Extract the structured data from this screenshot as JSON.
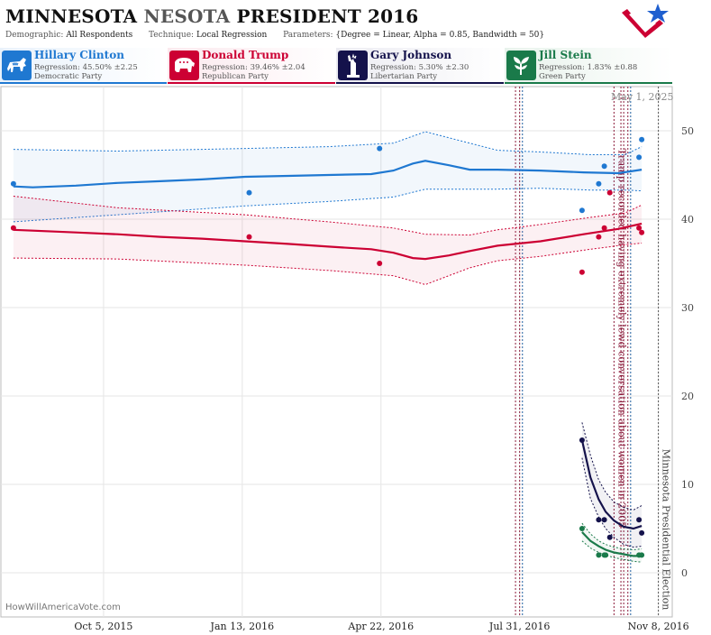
{
  "header": {
    "title_part1": "MINNESOTA",
    "title_part2": "NESOTA",
    "title_part3": "PRESIDENT 2016",
    "demographic_label": "Demographic:",
    "demographic_value": "All Respondents",
    "technique_label": "Technique:",
    "technique_value": "Local Regression",
    "parameters_label": "Parameters:",
    "parameters_value": "{Degree = Linear, Alpha = 0.85, Bandwidth = 50}"
  },
  "logo_icon": "star-checkmark-logo-icon",
  "candidates": [
    {
      "name": "Hillary Clinton",
      "regression": "Regression: 45.50% ±2.25",
      "party": "Democratic Party",
      "color": "#1f78d1",
      "bg": "#e9f2fb",
      "icon": "donkey-icon"
    },
    {
      "name": "Donald Trump",
      "regression": "Regression: 39.46% ±2.04",
      "party": "Republican Party",
      "color": "#cc0033",
      "bg": "#fbe9ee",
      "icon": "elephant-icon"
    },
    {
      "name": "Gary Johnson",
      "regression": "Regression: 5.30% ±2.30",
      "party": "Libertarian Party",
      "color": "#14124b",
      "bg": "#ececf2",
      "icon": "statue-of-liberty-icon"
    },
    {
      "name": "Jill Stein",
      "regression": "Regression: 1.83% ±0.88",
      "party": "Green Party",
      "color": "#1a7a4a",
      "bg": "#e8f3ec",
      "icon": "green-leaf-icon"
    }
  ],
  "date_stamp": "May 1, 2025",
  "watermark": "HowWillAmericaVote.com",
  "chart_data": {
    "type": "scatter",
    "x_axis": {
      "min": "2015-07-23",
      "max": "2016-11-18"
    },
    "x_ticks": [
      {
        "date": "2015-10-05",
        "label": "Oct 5, 2015"
      },
      {
        "date": "2016-01-13",
        "label": "Jan 13, 2016"
      },
      {
        "date": "2016-04-22",
        "label": "Apr 22, 2016"
      },
      {
        "date": "2016-07-31",
        "label": "Jul 31, 2016"
      },
      {
        "date": "2016-11-08",
        "label": "Nov 8, 2016"
      }
    ],
    "y_axis": {
      "min": -5,
      "max": 55,
      "ticks": [
        0,
        10,
        20,
        30,
        40,
        50
      ],
      "side": "right"
    },
    "grid": true,
    "event_lines": [
      {
        "date": "2016-07-28",
        "color": "#8b1a3a",
        "style": "dotted"
      },
      {
        "date": "2016-07-31",
        "color": "#8b1a3a",
        "style": "dotted"
      },
      {
        "date": "2016-08-02",
        "color": "#1f5fa0",
        "style": "dotted"
      },
      {
        "date": "2016-10-07",
        "color": "#8b1a3a",
        "style": "dotted"
      },
      {
        "date": "2016-10-12",
        "color": "#8b1a3a",
        "style": "dotted"
      },
      {
        "date": "2016-10-14",
        "color": "#8b1a3a",
        "style": "dotted"
      },
      {
        "date": "2016-10-17",
        "color": "#8b1a3a",
        "style": "dotted"
      },
      {
        "date": "2016-10-19",
        "color": "#1f5fa0",
        "style": "dotted"
      },
      {
        "date": "2016-11-08",
        "color": "#555555",
        "style": "dotted"
      }
    ],
    "annotations": [
      {
        "text": "Trump recorded having extremely lewd conversation about women in 2005",
        "date": "2016-10-07",
        "y": 48,
        "color": "#8b1a3a"
      },
      {
        "text": "Minnesota Presidential Election",
        "date": "2016-11-08",
        "y": 14,
        "color": "#444444"
      }
    ],
    "series": [
      {
        "name": "Hillary Clinton",
        "color": "#1f78d1",
        "points": [
          [
            "2015-08-01",
            44
          ],
          [
            "2016-01-18",
            43
          ],
          [
            "2016-04-21",
            48
          ],
          [
            "2016-09-14",
            41
          ],
          [
            "2016-09-26",
            44
          ],
          [
            "2016-09-30",
            46
          ],
          [
            "2016-10-25",
            47
          ],
          [
            "2016-10-27",
            49
          ]
        ],
        "trend": [
          [
            "2015-08-01",
            43.7
          ],
          [
            "2015-08-15",
            43.6
          ],
          [
            "2015-09-15",
            43.8
          ],
          [
            "2015-10-15",
            44.1
          ],
          [
            "2015-11-15",
            44.3
          ],
          [
            "2015-12-15",
            44.5
          ],
          [
            "2016-01-15",
            44.8
          ],
          [
            "2016-02-15",
            44.9
          ],
          [
            "2016-03-15",
            45.0
          ],
          [
            "2016-04-15",
            45.1
          ],
          [
            "2016-05-01",
            45.5
          ],
          [
            "2016-05-15",
            46.3
          ],
          [
            "2016-05-24",
            46.6
          ],
          [
            "2016-06-10",
            46.1
          ],
          [
            "2016-06-25",
            45.6
          ],
          [
            "2016-07-15",
            45.6
          ],
          [
            "2016-08-15",
            45.5
          ],
          [
            "2016-09-15",
            45.3
          ],
          [
            "2016-10-10",
            45.2
          ],
          [
            "2016-10-27",
            45.6
          ]
        ],
        "upper": [
          [
            "2015-08-01",
            47.9
          ],
          [
            "2015-10-15",
            47.7
          ],
          [
            "2016-01-15",
            48.0
          ],
          [
            "2016-03-15",
            48.2
          ],
          [
            "2016-05-01",
            48.6
          ],
          [
            "2016-05-24",
            49.9
          ],
          [
            "2016-06-15",
            49.0
          ],
          [
            "2016-07-15",
            47.8
          ],
          [
            "2016-08-15",
            47.6
          ],
          [
            "2016-09-20",
            47.3
          ],
          [
            "2016-10-15",
            47.3
          ],
          [
            "2016-10-27",
            48.2
          ]
        ],
        "lower": [
          [
            "2015-08-01",
            39.7
          ],
          [
            "2015-10-15",
            40.5
          ],
          [
            "2016-01-15",
            41.5
          ],
          [
            "2016-03-15",
            42.0
          ],
          [
            "2016-05-01",
            42.5
          ],
          [
            "2016-05-24",
            43.4
          ],
          [
            "2016-06-15",
            43.4
          ],
          [
            "2016-07-15",
            43.4
          ],
          [
            "2016-08-15",
            43.5
          ],
          [
            "2016-09-20",
            43.3
          ],
          [
            "2016-10-15",
            43.3
          ],
          [
            "2016-10-27",
            43.2
          ]
        ]
      },
      {
        "name": "Donald Trump",
        "color": "#cc0033",
        "points": [
          [
            "2015-08-01",
            39
          ],
          [
            "2016-01-18",
            38
          ],
          [
            "2016-04-21",
            35
          ],
          [
            "2016-09-14",
            34
          ],
          [
            "2016-09-26",
            38
          ],
          [
            "2016-09-30",
            39
          ],
          [
            "2016-10-04",
            43
          ],
          [
            "2016-10-25",
            39
          ],
          [
            "2016-10-27",
            38.5
          ]
        ],
        "trend": [
          [
            "2015-08-01",
            38.8
          ],
          [
            "2015-09-15",
            38.5
          ],
          [
            "2015-10-15",
            38.3
          ],
          [
            "2015-11-15",
            38.0
          ],
          [
            "2015-12-15",
            37.8
          ],
          [
            "2016-01-15",
            37.5
          ],
          [
            "2016-02-15",
            37.2
          ],
          [
            "2016-03-15",
            36.9
          ],
          [
            "2016-04-15",
            36.6
          ],
          [
            "2016-05-01",
            36.2
          ],
          [
            "2016-05-15",
            35.6
          ],
          [
            "2016-05-24",
            35.5
          ],
          [
            "2016-06-10",
            35.9
          ],
          [
            "2016-06-25",
            36.4
          ],
          [
            "2016-07-15",
            37.0
          ],
          [
            "2016-08-15",
            37.5
          ],
          [
            "2016-09-15",
            38.3
          ],
          [
            "2016-10-10",
            38.9
          ],
          [
            "2016-10-27",
            39.5
          ]
        ],
        "upper": [
          [
            "2015-08-01",
            42.6
          ],
          [
            "2015-10-15",
            41.3
          ],
          [
            "2016-01-15",
            40.5
          ],
          [
            "2016-03-15",
            39.7
          ],
          [
            "2016-05-01",
            39.0
          ],
          [
            "2016-05-24",
            38.3
          ],
          [
            "2016-06-25",
            38.2
          ],
          [
            "2016-07-15",
            38.8
          ],
          [
            "2016-08-15",
            39.4
          ],
          [
            "2016-09-20",
            40.2
          ],
          [
            "2016-10-15",
            40.7
          ],
          [
            "2016-10-27",
            41.6
          ]
        ],
        "lower": [
          [
            "2015-08-01",
            35.6
          ],
          [
            "2015-10-15",
            35.5
          ],
          [
            "2016-01-15",
            34.8
          ],
          [
            "2016-03-15",
            34.2
          ],
          [
            "2016-05-01",
            33.6
          ],
          [
            "2016-05-24",
            32.6
          ],
          [
            "2016-06-25",
            34.5
          ],
          [
            "2016-07-15",
            35.3
          ],
          [
            "2016-08-15",
            35.8
          ],
          [
            "2016-09-20",
            36.6
          ],
          [
            "2016-10-15",
            37.1
          ],
          [
            "2016-10-27",
            37.3
          ]
        ]
      },
      {
        "name": "Gary Johnson",
        "color": "#14124b",
        "points": [
          [
            "2016-09-14",
            15
          ],
          [
            "2016-09-26",
            6
          ],
          [
            "2016-09-30",
            6
          ],
          [
            "2016-10-04",
            4
          ],
          [
            "2016-10-25",
            6
          ],
          [
            "2016-10-27",
            4.5
          ]
        ],
        "trend": [
          [
            "2016-09-14",
            15.0
          ],
          [
            "2016-09-20",
            10.8
          ],
          [
            "2016-09-26",
            8.3
          ],
          [
            "2016-10-01",
            6.9
          ],
          [
            "2016-10-07",
            5.9
          ],
          [
            "2016-10-14",
            5.2
          ],
          [
            "2016-10-21",
            5.0
          ],
          [
            "2016-10-27",
            5.3
          ]
        ],
        "upper": [
          [
            "2016-09-14",
            17.0
          ],
          [
            "2016-09-20",
            13.3
          ],
          [
            "2016-09-26",
            10.5
          ],
          [
            "2016-10-01",
            9.1
          ],
          [
            "2016-10-07",
            8.0
          ],
          [
            "2016-10-14",
            7.4
          ],
          [
            "2016-10-21",
            7.1
          ],
          [
            "2016-10-27",
            7.6
          ]
        ],
        "lower": [
          [
            "2016-09-14",
            13.0
          ],
          [
            "2016-09-20",
            8.4
          ],
          [
            "2016-09-26",
            6.3
          ],
          [
            "2016-10-01",
            5.0
          ],
          [
            "2016-10-07",
            4.0
          ],
          [
            "2016-10-14",
            3.2
          ],
          [
            "2016-10-21",
            2.9
          ],
          [
            "2016-10-27",
            3.0
          ]
        ]
      },
      {
        "name": "Jill Stein",
        "color": "#1a7a4a",
        "points": [
          [
            "2016-09-14",
            5
          ],
          [
            "2016-09-26",
            2
          ],
          [
            "2016-09-30",
            2
          ],
          [
            "2016-10-01",
            2
          ],
          [
            "2016-10-25",
            2
          ],
          [
            "2016-10-27",
            2
          ]
        ],
        "trend": [
          [
            "2016-09-14",
            4.6
          ],
          [
            "2016-09-20",
            3.6
          ],
          [
            "2016-09-26",
            3.0
          ],
          [
            "2016-10-01",
            2.6
          ],
          [
            "2016-10-07",
            2.3
          ],
          [
            "2016-10-14",
            2.1
          ],
          [
            "2016-10-21",
            1.9
          ],
          [
            "2016-10-27",
            1.9
          ]
        ],
        "upper": [
          [
            "2016-09-14",
            5.6
          ],
          [
            "2016-09-20",
            4.4
          ],
          [
            "2016-09-26",
            3.6
          ],
          [
            "2016-10-01",
            3.2
          ],
          [
            "2016-10-07",
            2.9
          ],
          [
            "2016-10-14",
            2.7
          ],
          [
            "2016-10-21",
            2.6
          ],
          [
            "2016-10-27",
            2.7
          ]
        ],
        "lower": [
          [
            "2016-09-14",
            3.6
          ],
          [
            "2016-09-20",
            2.8
          ],
          [
            "2016-09-26",
            2.3
          ],
          [
            "2016-10-01",
            2.0
          ],
          [
            "2016-10-07",
            1.7
          ],
          [
            "2016-10-14",
            1.5
          ],
          [
            "2016-10-21",
            1.3
          ],
          [
            "2016-10-27",
            1.2
          ]
        ]
      }
    ]
  }
}
